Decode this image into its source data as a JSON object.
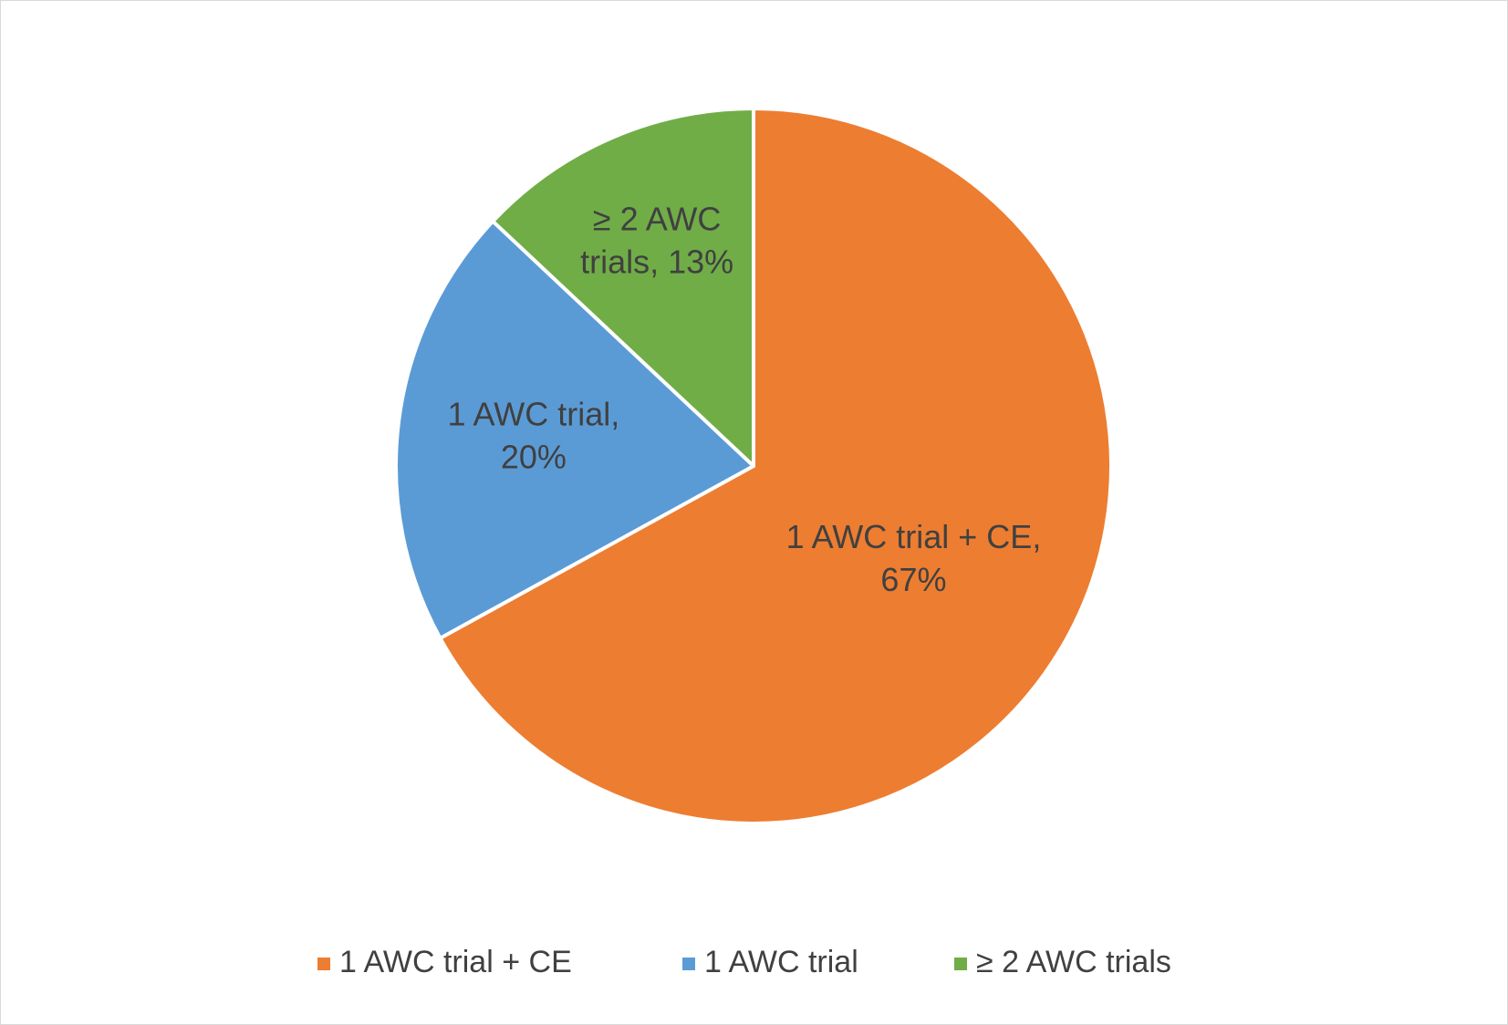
{
  "chart_data": {
    "type": "pie",
    "categories": [
      "1 AWC trial + CE",
      "1 AWC trial",
      "≥ 2 AWC trials"
    ],
    "values": [
      67,
      20,
      13
    ],
    "value_labels": [
      [
        "1 AWC trial + CE,",
        "67%"
      ],
      [
        "1 AWC trial,",
        "20%"
      ],
      [
        "≥ 2 AWC",
        "trials, 13%"
      ]
    ],
    "colors": [
      "#ed7d31",
      "#5b9bd5",
      "#70ad47"
    ],
    "legend": "bottom"
  }
}
